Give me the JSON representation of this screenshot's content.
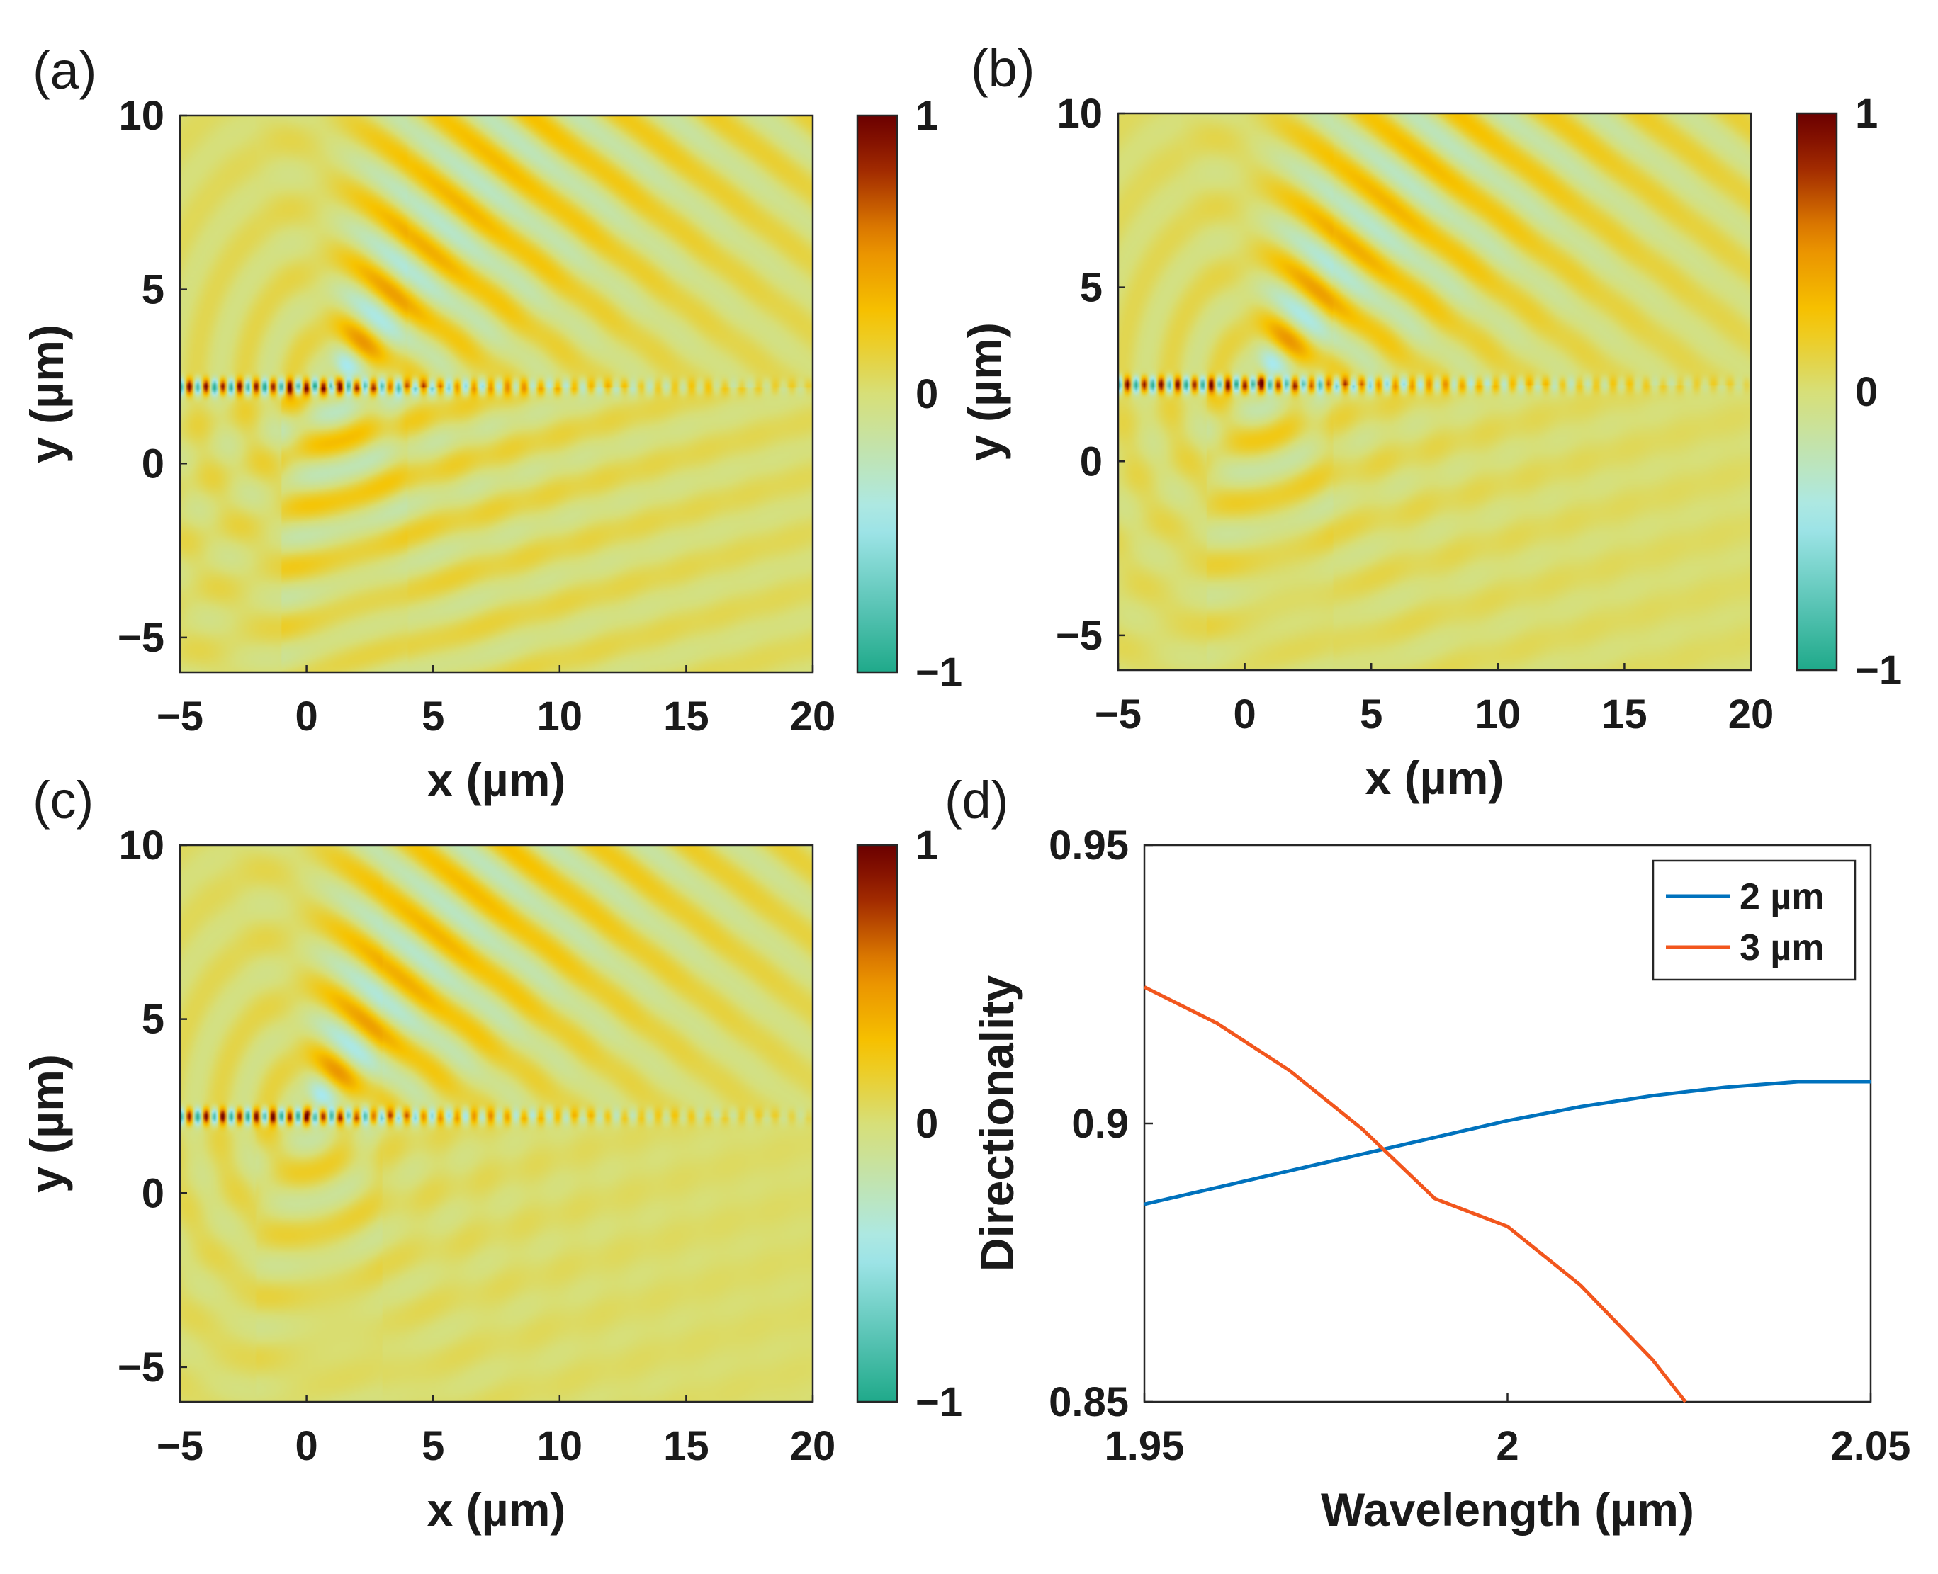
{
  "panels": [
    {
      "label": "(a)",
      "type": "heatmap",
      "xlabel": "x (µm)",
      "ylabel": "y (µm)",
      "xlim": [
        -5,
        20
      ],
      "ylim": [
        -6,
        10
      ],
      "xticks": [
        "−5",
        "0",
        "5",
        "10",
        "15",
        "20"
      ],
      "xtick_values": [
        -5,
        0,
        5,
        10,
        15,
        20
      ],
      "yticks": [
        "−5",
        "0",
        "5",
        "10"
      ],
      "ytick_values": [
        -5,
        0,
        5,
        10
      ],
      "colorbar": {
        "ticks": [
          "1",
          "0",
          "−1"
        ],
        "tick_values": [
          1,
          0,
          -1
        ],
        "range": [
          -1,
          1
        ]
      },
      "waveguide_y": 2.2,
      "source_x": 1,
      "lower_wave_strength": 1.0
    },
    {
      "label": "(b)",
      "type": "heatmap",
      "xlabel": "x (µm)",
      "ylabel": "y (µm)",
      "xlim": [
        -5,
        20
      ],
      "ylim": [
        -6,
        10
      ],
      "xticks": [
        "−5",
        "0",
        "5",
        "10",
        "15",
        "20"
      ],
      "xtick_values": [
        -5,
        0,
        5,
        10,
        15,
        20
      ],
      "yticks": [
        "−5",
        "0",
        "5",
        "10"
      ],
      "ytick_values": [
        -5,
        0,
        5,
        10
      ],
      "colorbar": {
        "ticks": [
          "1",
          "0",
          "−1"
        ],
        "tick_values": [
          1,
          0,
          -1
        ],
        "range": [
          -1,
          1
        ]
      },
      "waveguide_y": 2.2,
      "source_x": 0.5,
      "lower_wave_strength": 0.55
    },
    {
      "label": "(c)",
      "type": "heatmap",
      "xlabel": "x (µm)",
      "ylabel": "y (µm)",
      "xlim": [
        -5,
        20
      ],
      "ylim": [
        -6,
        10
      ],
      "xticks": [
        "−5",
        "0",
        "5",
        "10",
        "15",
        "20"
      ],
      "xtick_values": [
        -5,
        0,
        5,
        10,
        15,
        20
      ],
      "yticks": [
        "−5",
        "0",
        "5",
        "10"
      ],
      "ytick_values": [
        -5,
        0,
        5,
        10
      ],
      "colorbar": {
        "ticks": [
          "1",
          "0",
          "−1"
        ],
        "tick_values": [
          1,
          0,
          -1
        ],
        "range": [
          -1,
          1
        ]
      },
      "waveguide_y": 2.2,
      "source_x": 0,
      "lower_wave_strength": 0.35
    }
  ],
  "colormap": [
    "#1fa98a",
    "#a8e9ef",
    "#d7df78",
    "#f7c400",
    "#e88a00",
    "#9c2300",
    "#6b0000"
  ],
  "chart_data": [
    {
      "type": "line",
      "panel_label": "(d)",
      "xlabel": "Wavelength (µm)",
      "ylabel": "Directionality",
      "xlim": [
        1.95,
        2.05
      ],
      "ylim": [
        0.85,
        0.95
      ],
      "xticks": [
        "1.95",
        "2",
        "2.05"
      ],
      "xtick_values": [
        1.95,
        2.0,
        2.05
      ],
      "yticks": [
        "0.95",
        "0.9",
        "0.85"
      ],
      "ytick_values": [
        0.95,
        0.9,
        0.85
      ],
      "legend_position": "top-right",
      "series": [
        {
          "name": "2 µm",
          "color": "#0072bd",
          "x": [
            1.95,
            1.96,
            1.97,
            1.98,
            1.99,
            2.0,
            2.01,
            2.02,
            2.03,
            2.04,
            2.05
          ],
          "y": [
            0.8855,
            0.8885,
            0.8915,
            0.8945,
            0.8975,
            0.9005,
            0.903,
            0.905,
            0.9065,
            0.9075,
            0.9075
          ]
        },
        {
          "name": "3 µm",
          "color": "#f2561d",
          "x": [
            1.95,
            1.96,
            1.97,
            1.98,
            1.99,
            2.0,
            2.01,
            2.02,
            2.0245
          ],
          "y": [
            0.9245,
            0.918,
            0.9095,
            0.899,
            0.8865,
            0.8815,
            0.871,
            0.8575,
            0.85
          ]
        }
      ]
    }
  ]
}
